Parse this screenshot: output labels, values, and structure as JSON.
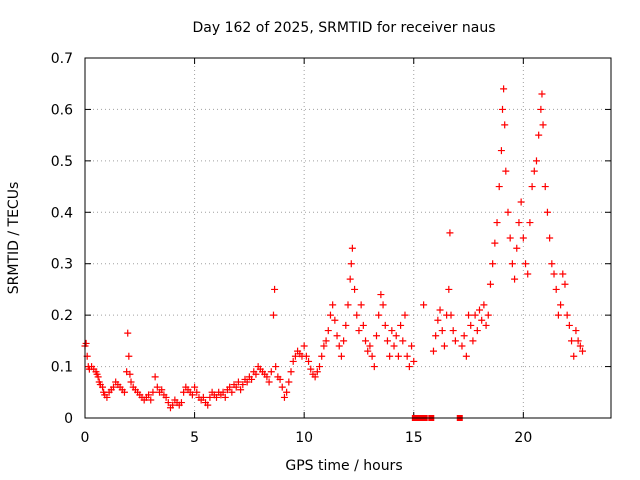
{
  "chart_data": {
    "type": "scatter",
    "title": "Day 162 of 2025, SRMTID for receiver naus",
    "xlabel": "GPS time / hours",
    "ylabel": "SRMTID / TECUs",
    "xlim": [
      0,
      24
    ],
    "ylim": [
      0,
      0.7
    ],
    "xticks": [
      0,
      5,
      10,
      15,
      20
    ],
    "xtick_labels": [
      "0",
      "5",
      "10",
      "15",
      "20"
    ],
    "yticks": [
      0,
      0.1,
      0.2,
      0.3,
      0.4,
      0.5,
      0.6,
      0.7
    ],
    "ytick_labels": [
      "0",
      "0.1",
      "0.2",
      "0.3",
      "0.4",
      "0.5",
      "0.6",
      "0.7"
    ],
    "grid": true,
    "marker": "plus",
    "color": "#ff0000",
    "series": [
      {
        "name": "SRMTID",
        "points": [
          [
            0.0,
            0.14
          ],
          [
            0.05,
            0.145
          ],
          [
            0.1,
            0.12
          ],
          [
            0.15,
            0.1
          ],
          [
            0.2,
            0.095
          ],
          [
            0.3,
            0.1
          ],
          [
            0.4,
            0.095
          ],
          [
            0.5,
            0.09
          ],
          [
            0.55,
            0.085
          ],
          [
            0.6,
            0.08
          ],
          [
            0.65,
            0.07
          ],
          [
            0.7,
            0.065
          ],
          [
            0.8,
            0.06
          ],
          [
            0.85,
            0.05
          ],
          [
            0.9,
            0.045
          ],
          [
            1.0,
            0.04
          ],
          [
            1.1,
            0.05
          ],
          [
            1.2,
            0.055
          ],
          [
            1.3,
            0.06
          ],
          [
            1.4,
            0.07
          ],
          [
            1.5,
            0.065
          ],
          [
            1.6,
            0.06
          ],
          [
            1.7,
            0.055
          ],
          [
            1.8,
            0.05
          ],
          [
            1.9,
            0.09
          ],
          [
            1.95,
            0.165
          ],
          [
            2.0,
            0.12
          ],
          [
            2.05,
            0.085
          ],
          [
            2.1,
            0.07
          ],
          [
            2.2,
            0.06
          ],
          [
            2.3,
            0.055
          ],
          [
            2.4,
            0.05
          ],
          [
            2.5,
            0.045
          ],
          [
            2.6,
            0.04
          ],
          [
            2.7,
            0.035
          ],
          [
            2.8,
            0.04
          ],
          [
            2.9,
            0.045
          ],
          [
            3.0,
            0.035
          ],
          [
            3.1,
            0.05
          ],
          [
            3.2,
            0.08
          ],
          [
            3.3,
            0.06
          ],
          [
            3.4,
            0.05
          ],
          [
            3.5,
            0.055
          ],
          [
            3.6,
            0.045
          ],
          [
            3.7,
            0.04
          ],
          [
            3.8,
            0.03
          ],
          [
            3.9,
            0.02
          ],
          [
            4.0,
            0.025
          ],
          [
            4.1,
            0.035
          ],
          [
            4.2,
            0.03
          ],
          [
            4.3,
            0.025
          ],
          [
            4.4,
            0.03
          ],
          [
            4.5,
            0.05
          ],
          [
            4.6,
            0.06
          ],
          [
            4.7,
            0.055
          ],
          [
            4.8,
            0.05
          ],
          [
            4.9,
            0.045
          ],
          [
            5.0,
            0.06
          ],
          [
            5.1,
            0.05
          ],
          [
            5.2,
            0.04
          ],
          [
            5.3,
            0.035
          ],
          [
            5.4,
            0.04
          ],
          [
            5.5,
            0.03
          ],
          [
            5.6,
            0.025
          ],
          [
            5.7,
            0.04
          ],
          [
            5.8,
            0.05
          ],
          [
            5.9,
            0.045
          ],
          [
            6.0,
            0.04
          ],
          [
            6.1,
            0.05
          ],
          [
            6.2,
            0.045
          ],
          [
            6.3,
            0.05
          ],
          [
            6.4,
            0.04
          ],
          [
            6.5,
            0.055
          ],
          [
            6.6,
            0.06
          ],
          [
            6.7,
            0.05
          ],
          [
            6.8,
            0.065
          ],
          [
            6.9,
            0.06
          ],
          [
            7.0,
            0.07
          ],
          [
            7.1,
            0.055
          ],
          [
            7.2,
            0.065
          ],
          [
            7.3,
            0.075
          ],
          [
            7.4,
            0.07
          ],
          [
            7.5,
            0.08
          ],
          [
            7.6,
            0.075
          ],
          [
            7.7,
            0.09
          ],
          [
            7.8,
            0.085
          ],
          [
            7.9,
            0.1
          ],
          [
            8.0,
            0.095
          ],
          [
            8.1,
            0.09
          ],
          [
            8.2,
            0.085
          ],
          [
            8.3,
            0.08
          ],
          [
            8.4,
            0.07
          ],
          [
            8.5,
            0.09
          ],
          [
            8.6,
            0.2
          ],
          [
            8.65,
            0.25
          ],
          [
            8.7,
            0.1
          ],
          [
            8.8,
            0.08
          ],
          [
            8.9,
            0.075
          ],
          [
            9.0,
            0.06
          ],
          [
            9.1,
            0.04
          ],
          [
            9.2,
            0.05
          ],
          [
            9.3,
            0.07
          ],
          [
            9.4,
            0.09
          ],
          [
            9.5,
            0.11
          ],
          [
            9.6,
            0.12
          ],
          [
            9.7,
            0.13
          ],
          [
            9.8,
            0.125
          ],
          [
            9.9,
            0.12
          ],
          [
            10.0,
            0.14
          ],
          [
            10.1,
            0.12
          ],
          [
            10.2,
            0.11
          ],
          [
            10.3,
            0.095
          ],
          [
            10.4,
            0.085
          ],
          [
            10.5,
            0.08
          ],
          [
            10.6,
            0.09
          ],
          [
            10.7,
            0.1
          ],
          [
            10.8,
            0.12
          ],
          [
            10.9,
            0.14
          ],
          [
            11.0,
            0.15
          ],
          [
            11.1,
            0.17
          ],
          [
            11.2,
            0.2
          ],
          [
            11.3,
            0.22
          ],
          [
            11.4,
            0.19
          ],
          [
            11.5,
            0.16
          ],
          [
            11.6,
            0.14
          ],
          [
            11.7,
            0.12
          ],
          [
            11.8,
            0.15
          ],
          [
            11.9,
            0.18
          ],
          [
            12.0,
            0.22
          ],
          [
            12.1,
            0.27
          ],
          [
            12.15,
            0.3
          ],
          [
            12.2,
            0.33
          ],
          [
            12.3,
            0.25
          ],
          [
            12.4,
            0.2
          ],
          [
            12.5,
            0.17
          ],
          [
            12.6,
            0.22
          ],
          [
            12.7,
            0.18
          ],
          [
            12.8,
            0.15
          ],
          [
            12.9,
            0.13
          ],
          [
            13.0,
            0.14
          ],
          [
            13.1,
            0.12
          ],
          [
            13.2,
            0.1
          ],
          [
            13.3,
            0.16
          ],
          [
            13.4,
            0.2
          ],
          [
            13.5,
            0.24
          ],
          [
            13.6,
            0.22
          ],
          [
            13.7,
            0.18
          ],
          [
            13.8,
            0.15
          ],
          [
            13.9,
            0.12
          ],
          [
            14.0,
            0.17
          ],
          [
            14.1,
            0.14
          ],
          [
            14.2,
            0.16
          ],
          [
            14.3,
            0.12
          ],
          [
            14.4,
            0.18
          ],
          [
            14.5,
            0.15
          ],
          [
            14.6,
            0.2
          ],
          [
            14.7,
            0.12
          ],
          [
            14.8,
            0.1
          ],
          [
            14.9,
            0.14
          ],
          [
            15.0,
            0.11
          ],
          [
            15.05,
            0.0
          ],
          [
            15.3,
            0.0
          ],
          [
            15.45,
            0.22
          ],
          [
            15.5,
            0.0
          ],
          [
            15.8,
            0.0
          ],
          [
            15.9,
            0.13
          ],
          [
            16.0,
            0.16
          ],
          [
            16.1,
            0.19
          ],
          [
            16.2,
            0.21
          ],
          [
            16.3,
            0.17
          ],
          [
            16.4,
            0.14
          ],
          [
            16.5,
            0.2
          ],
          [
            16.6,
            0.25
          ],
          [
            16.65,
            0.36
          ],
          [
            16.7,
            0.2
          ],
          [
            16.8,
            0.17
          ],
          [
            16.9,
            0.15
          ],
          [
            17.1,
            0.0
          ],
          [
            17.2,
            0.14
          ],
          [
            17.3,
            0.16
          ],
          [
            17.4,
            0.12
          ],
          [
            17.5,
            0.2
          ],
          [
            17.6,
            0.18
          ],
          [
            17.7,
            0.15
          ],
          [
            17.8,
            0.2
          ],
          [
            17.9,
            0.17
          ],
          [
            18.0,
            0.21
          ],
          [
            18.1,
            0.19
          ],
          [
            18.2,
            0.22
          ],
          [
            18.3,
            0.18
          ],
          [
            18.4,
            0.2
          ],
          [
            18.5,
            0.26
          ],
          [
            18.6,
            0.3
          ],
          [
            18.7,
            0.34
          ],
          [
            18.8,
            0.38
          ],
          [
            18.9,
            0.45
          ],
          [
            19.0,
            0.52
          ],
          [
            19.05,
            0.6
          ],
          [
            19.1,
            0.64
          ],
          [
            19.15,
            0.57
          ],
          [
            19.2,
            0.48
          ],
          [
            19.3,
            0.4
          ],
          [
            19.4,
            0.35
          ],
          [
            19.5,
            0.3
          ],
          [
            19.6,
            0.27
          ],
          [
            19.7,
            0.33
          ],
          [
            19.8,
            0.38
          ],
          [
            19.9,
            0.42
          ],
          [
            20.0,
            0.35
          ],
          [
            20.1,
            0.3
          ],
          [
            20.2,
            0.28
          ],
          [
            20.3,
            0.38
          ],
          [
            20.4,
            0.45
          ],
          [
            20.5,
            0.48
          ],
          [
            20.6,
            0.5
          ],
          [
            20.7,
            0.55
          ],
          [
            20.8,
            0.6
          ],
          [
            20.85,
            0.63
          ],
          [
            20.9,
            0.57
          ],
          [
            21.0,
            0.45
          ],
          [
            21.1,
            0.4
          ],
          [
            21.2,
            0.35
          ],
          [
            21.3,
            0.3
          ],
          [
            21.4,
            0.28
          ],
          [
            21.5,
            0.25
          ],
          [
            21.6,
            0.2
          ],
          [
            21.7,
            0.22
          ],
          [
            21.8,
            0.28
          ],
          [
            21.9,
            0.26
          ],
          [
            22.0,
            0.2
          ],
          [
            22.1,
            0.18
          ],
          [
            22.2,
            0.15
          ],
          [
            22.3,
            0.12
          ],
          [
            22.4,
            0.17
          ],
          [
            22.5,
            0.15
          ],
          [
            22.6,
            0.14
          ],
          [
            22.7,
            0.13
          ]
        ]
      }
    ]
  }
}
